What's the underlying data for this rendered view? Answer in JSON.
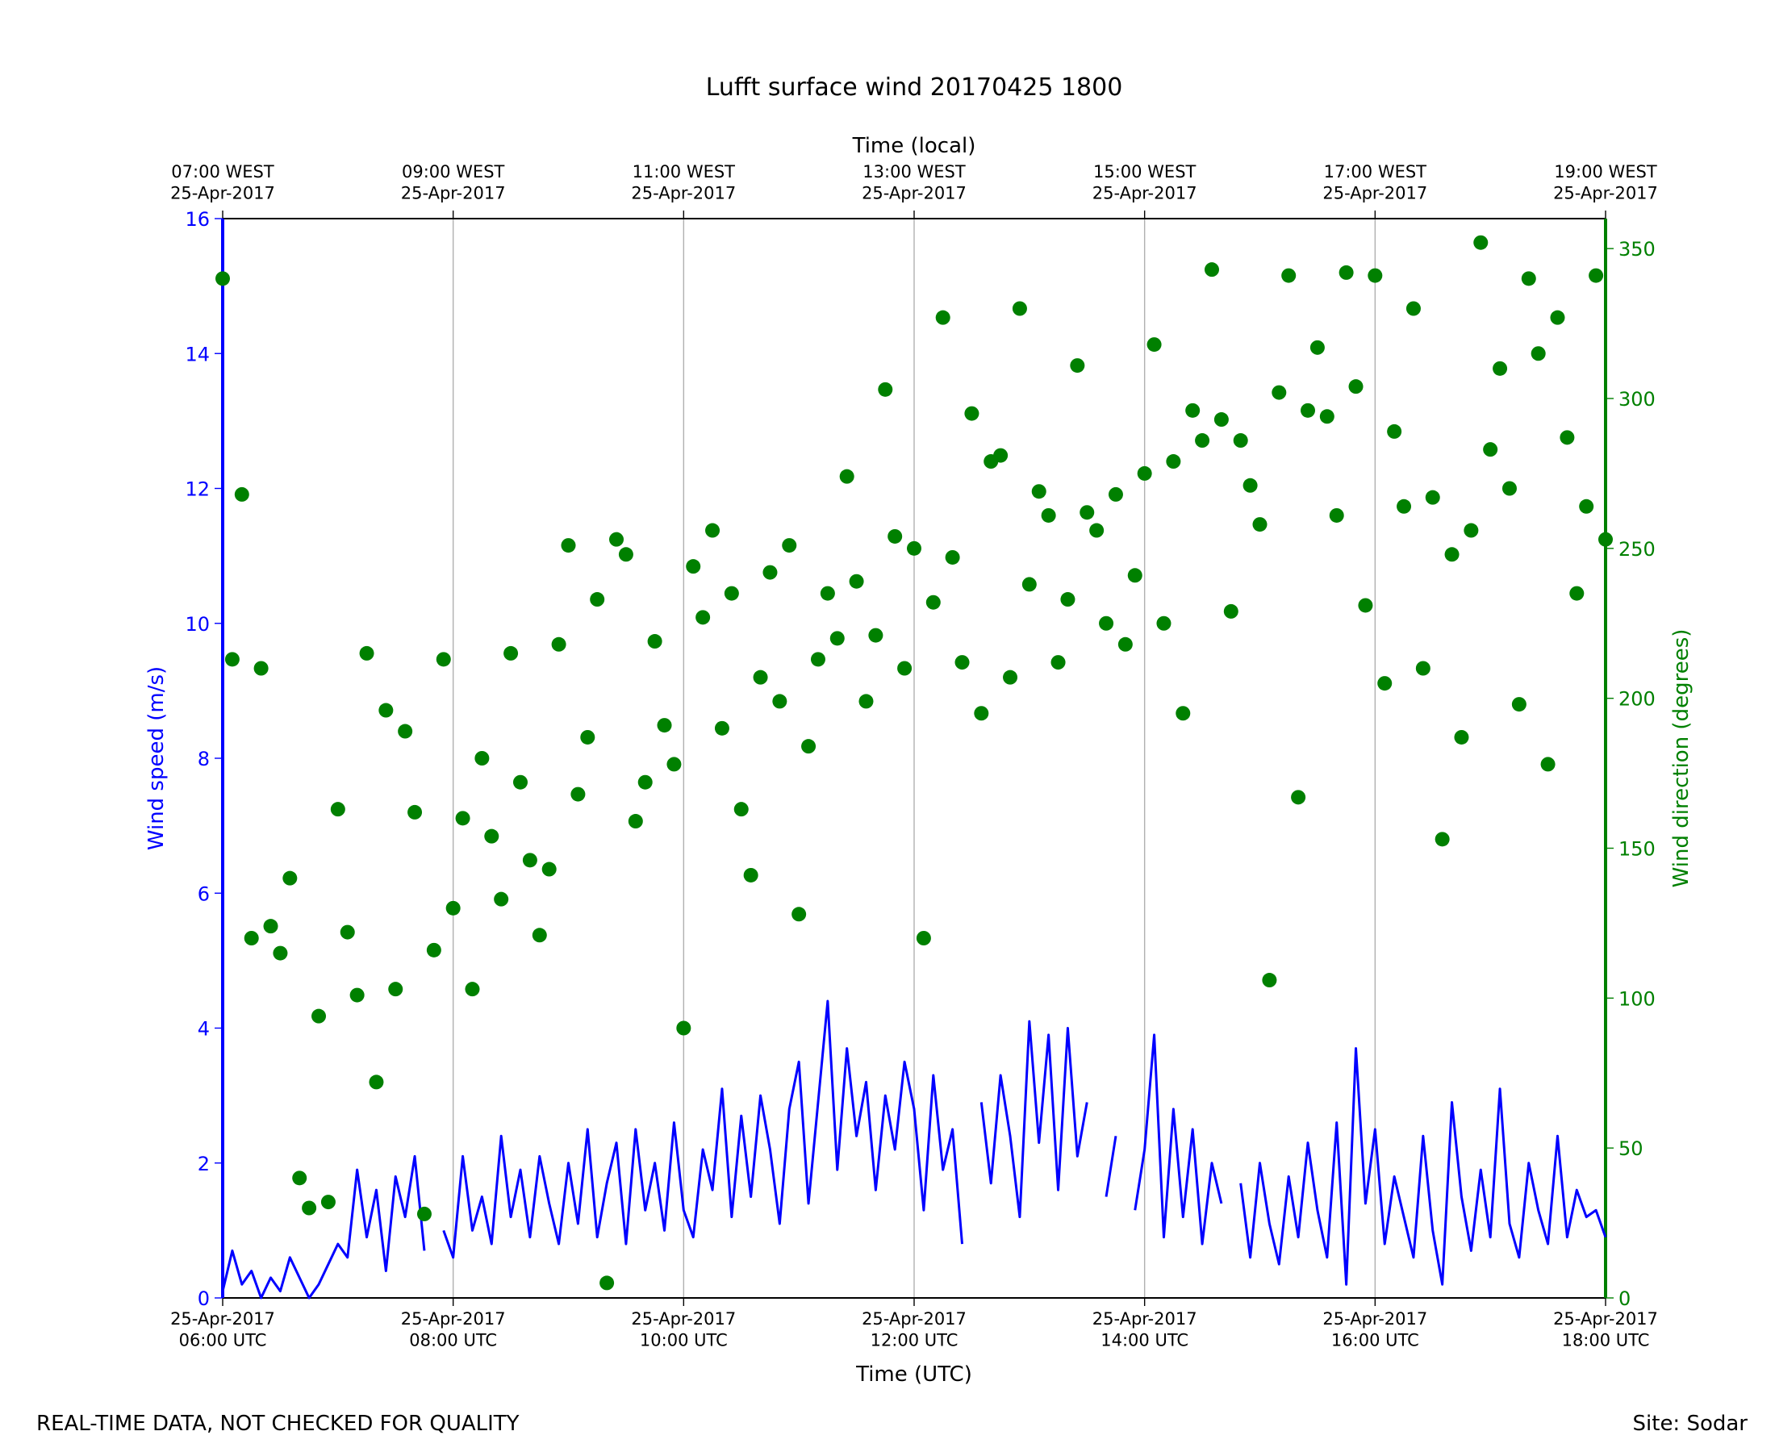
{
  "chart_data": {
    "type": "line+scatter",
    "title": "Lufft surface wind 20170425 1800",
    "xlabel": "Time (UTC)",
    "x2label": "Time (local)",
    "ylabel": "Wind speed (m/s)",
    "y2label": "Wind direction (degrees)",
    "footer_left": "REAL-TIME DATA, NOT CHECKED FOR QUALITY",
    "footer_right": "Site: Sodar",
    "xlim": [
      "06:00",
      "18:00"
    ],
    "xticks": [
      {
        "value": "06:00",
        "label": "25-Apr-2017\n06:00 UTC"
      },
      {
        "value": "08:00",
        "label": "25-Apr-2017\n08:00 UTC"
      },
      {
        "value": "10:00",
        "label": "25-Apr-2017\n10:00 UTC"
      },
      {
        "value": "12:00",
        "label": "25-Apr-2017\n12:00 UTC"
      },
      {
        "value": "14:00",
        "label": "25-Apr-2017\n14:00 UTC"
      },
      {
        "value": "16:00",
        "label": "25-Apr-2017\n16:00 UTC"
      },
      {
        "value": "18:00",
        "label": "25-Apr-2017\n18:00 UTC"
      }
    ],
    "x2ticks": [
      {
        "value": "06:00",
        "label": "07:00 WEST\n25-Apr-2017"
      },
      {
        "value": "08:00",
        "label": "09:00 WEST\n25-Apr-2017"
      },
      {
        "value": "10:00",
        "label": "11:00 WEST\n25-Apr-2017"
      },
      {
        "value": "12:00",
        "label": "13:00 WEST\n25-Apr-2017"
      },
      {
        "value": "14:00",
        "label": "15:00 WEST\n25-Apr-2017"
      },
      {
        "value": "16:00",
        "label": "17:00 WEST\n25-Apr-2017"
      },
      {
        "value": "18:00",
        "label": "19:00 WEST\n25-Apr-2017"
      }
    ],
    "ylim": [
      0,
      16
    ],
    "yticks": [
      0,
      2,
      4,
      6,
      8,
      10,
      12,
      14,
      16
    ],
    "y2lim": [
      0,
      360
    ],
    "y2ticks": [
      0,
      50,
      100,
      150,
      200,
      250,
      300,
      350
    ],
    "grid": true,
    "x": [
      "06:00",
      "06:05",
      "06:10",
      "06:15",
      "06:20",
      "06:25",
      "06:30",
      "06:35",
      "06:40",
      "06:45",
      "06:50",
      "06:55",
      "07:00",
      "07:05",
      "07:10",
      "07:15",
      "07:20",
      "07:25",
      "07:30",
      "07:35",
      "07:40",
      "07:45",
      "07:50",
      "07:55",
      "08:00",
      "08:05",
      "08:10",
      "08:15",
      "08:20",
      "08:25",
      "08:30",
      "08:35",
      "08:40",
      "08:45",
      "08:50",
      "08:55",
      "09:00",
      "09:05",
      "09:10",
      "09:15",
      "09:20",
      "09:25",
      "09:30",
      "09:35",
      "09:40",
      "09:45",
      "09:50",
      "09:55",
      "10:00",
      "10:05",
      "10:10",
      "10:15",
      "10:20",
      "10:25",
      "10:30",
      "10:35",
      "10:40",
      "10:45",
      "10:50",
      "10:55",
      "11:00",
      "11:05",
      "11:10",
      "11:15",
      "11:20",
      "11:25",
      "11:30",
      "11:35",
      "11:40",
      "11:45",
      "11:50",
      "11:55",
      "12:00",
      "12:05",
      "12:10",
      "12:15",
      "12:20",
      "12:25",
      "12:30",
      "12:35",
      "12:40",
      "12:45",
      "12:50",
      "12:55",
      "13:00",
      "13:05",
      "13:10",
      "13:15",
      "13:20",
      "13:25",
      "13:30",
      "13:35",
      "13:40",
      "13:45",
      "13:50",
      "13:55",
      "14:00",
      "14:05",
      "14:10",
      "14:15",
      "14:20",
      "14:25",
      "14:30",
      "14:35",
      "14:40",
      "14:45",
      "14:50",
      "14:55",
      "15:00",
      "15:05",
      "15:10",
      "15:15",
      "15:20",
      "15:25",
      "15:30",
      "15:35",
      "15:40",
      "15:45",
      "15:50",
      "15:55",
      "16:00",
      "16:05",
      "16:10",
      "16:15",
      "16:20",
      "16:25",
      "16:30",
      "16:35",
      "16:40",
      "16:45",
      "16:50",
      "16:55",
      "17:00",
      "17:05",
      "17:10",
      "17:15",
      "17:20",
      "17:25",
      "17:30",
      "17:35",
      "17:40",
      "17:45",
      "17:50",
      "17:55",
      "18:00"
    ],
    "series": [
      {
        "name": "Wind speed",
        "kind": "line",
        "color": "#0000ff",
        "values": [
          0.1,
          0.7,
          0.2,
          0.4,
          0.0,
          0.3,
          0.1,
          0.6,
          0.3,
          0.0,
          0.2,
          0.5,
          0.8,
          0.6,
          1.9,
          0.9,
          1.6,
          0.4,
          1.8,
          1.2,
          2.1,
          0.7,
          null,
          1.0,
          0.6,
          2.1,
          1.0,
          1.5,
          0.8,
          2.4,
          1.2,
          1.9,
          0.9,
          2.1,
          1.4,
          0.8,
          2.0,
          1.1,
          2.5,
          0.9,
          1.7,
          2.3,
          0.8,
          2.5,
          1.3,
          2.0,
          1.0,
          2.6,
          1.3,
          0.9,
          2.2,
          1.6,
          3.1,
          1.2,
          2.7,
          1.5,
          3.0,
          2.2,
          1.1,
          2.8,
          3.5,
          1.4,
          2.9,
          4.4,
          1.9,
          3.7,
          2.4,
          3.2,
          1.6,
          3.0,
          2.2,
          3.5,
          2.8,
          1.3,
          3.3,
          1.9,
          2.5,
          0.8,
          null,
          2.9,
          1.7,
          3.3,
          2.4,
          1.2,
          4.1,
          2.3,
          3.9,
          1.6,
          4.0,
          2.1,
          2.9,
          null,
          1.5,
          2.4,
          null,
          1.3,
          2.2,
          3.9,
          0.9,
          2.8,
          1.2,
          2.5,
          0.8,
          2.0,
          1.4,
          null,
          1.7,
          0.6,
          2.0,
          1.1,
          0.5,
          1.8,
          0.9,
          2.3,
          1.3,
          0.6,
          2.6,
          0.2,
          3.7,
          1.4,
          2.5,
          0.8,
          1.8,
          1.2,
          0.6,
          2.4,
          1.0,
          0.2,
          2.9,
          1.5,
          0.7,
          1.9,
          0.9,
          3.1,
          1.1,
          0.6,
          2.0,
          1.3,
          0.8,
          2.4,
          0.9,
          1.6,
          1.2,
          1.3,
          0.9
        ]
      },
      {
        "name": "Wind direction",
        "kind": "scatter",
        "axis": "y2",
        "color": "#008000",
        "values": [
          340,
          213,
          268,
          120,
          210,
          124,
          115,
          140,
          40,
          30,
          94,
          32,
          163,
          122,
          101,
          215,
          72,
          196,
          103,
          189,
          162,
          28,
          116,
          213,
          130,
          160,
          103,
          180,
          154,
          133,
          215,
          172,
          146,
          121,
          143,
          218,
          251,
          168,
          187,
          233,
          5,
          253,
          248,
          159,
          172,
          219,
          191,
          178,
          90,
          244,
          227,
          256,
          190,
          235,
          163,
          141,
          207,
          242,
          199,
          251,
          128,
          184,
          213,
          235,
          220,
          274,
          239,
          199,
          221,
          303,
          254,
          210,
          250,
          120,
          232,
          327,
          247,
          212,
          295,
          195,
          279,
          281,
          207,
          330,
          238,
          269,
          261,
          212,
          233,
          311,
          262,
          256,
          225,
          268,
          218,
          241,
          275,
          318,
          225,
          279,
          195,
          296,
          286,
          343,
          293,
          229,
          286,
          271,
          258,
          106,
          302,
          341,
          167,
          296,
          317,
          294,
          261,
          342,
          304,
          231,
          341,
          205,
          289,
          264,
          330,
          210,
          267,
          153,
          248,
          187,
          256,
          352,
          283,
          310,
          270,
          198,
          340,
          315,
          178,
          327,
          287,
          235,
          264,
          341,
          253
        ]
      }
    ]
  }
}
